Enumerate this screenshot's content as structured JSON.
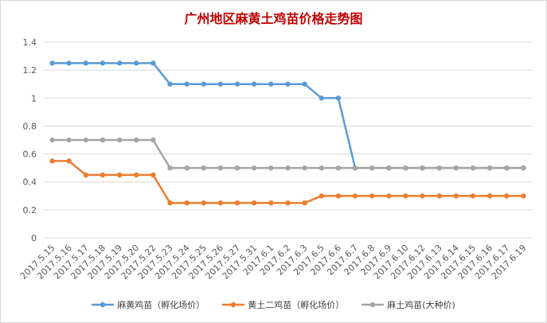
{
  "chart_data": {
    "type": "line",
    "title": "广州地区麻黄土鸡苗价格走势图",
    "xlabel": "",
    "ylabel": "",
    "ylim": [
      0,
      1.4
    ],
    "yticks": [
      "0",
      "0.2",
      "0.4",
      "0.6",
      "0.8",
      "1",
      "1.2",
      "1.4"
    ],
    "grid": true,
    "legend_position": "bottom",
    "categories": [
      "2017.5.15",
      "2017.5.16",
      "2017.5.17",
      "2017.5.18",
      "2017.5.19",
      "2017.5.20",
      "2017.5.22",
      "2017.5.23",
      "2017.5.24",
      "2017.5.25",
      "2017.5.26",
      "2017.5.27",
      "2017.5.31",
      "2017.6.1",
      "2017.6.2",
      "2017.6.3",
      "2017.6.5",
      "2017.6.6",
      "2017.6.7",
      "2017.6.8",
      "2017.6.9",
      "2017.6.10",
      "2017.6.12",
      "2017.6.13",
      "2017.6.14",
      "2017.6.15",
      "2017.6.16",
      "2017.6.17",
      "2017.6.19"
    ],
    "series": [
      {
        "name": "麻黄鸡苗（孵化场价）",
        "color": "#5b9bd5",
        "values": [
          1.25,
          1.25,
          1.25,
          1.25,
          1.25,
          1.25,
          1.25,
          1.1,
          1.1,
          1.1,
          1.1,
          1.1,
          1.1,
          1.1,
          1.1,
          1.1,
          1.0,
          1.0,
          0.5,
          0.5,
          0.5,
          0.5,
          0.5,
          0.5,
          0.5,
          0.5,
          0.5,
          0.5,
          0.5
        ]
      },
      {
        "name": "黄土二鸡苗（孵化场价）",
        "color": "#ed7d31",
        "values": [
          0.55,
          0.55,
          0.45,
          0.45,
          0.45,
          0.45,
          0.45,
          0.25,
          0.25,
          0.25,
          0.25,
          0.25,
          0.25,
          0.25,
          0.25,
          0.25,
          0.3,
          0.3,
          0.3,
          0.3,
          0.3,
          0.3,
          0.3,
          0.3,
          0.3,
          0.3,
          0.3,
          0.3,
          0.3
        ]
      },
      {
        "name": "麻土鸡苗(大种价)",
        "color": "#a5a5a5",
        "values": [
          0.7,
          0.7,
          0.7,
          0.7,
          0.7,
          0.7,
          0.7,
          0.5,
          0.5,
          0.5,
          0.5,
          0.5,
          0.5,
          0.5,
          0.5,
          0.5,
          0.5,
          0.5,
          0.5,
          0.5,
          0.5,
          0.5,
          0.5,
          0.5,
          0.5,
          0.5,
          0.5,
          0.5,
          0.5
        ]
      }
    ]
  }
}
